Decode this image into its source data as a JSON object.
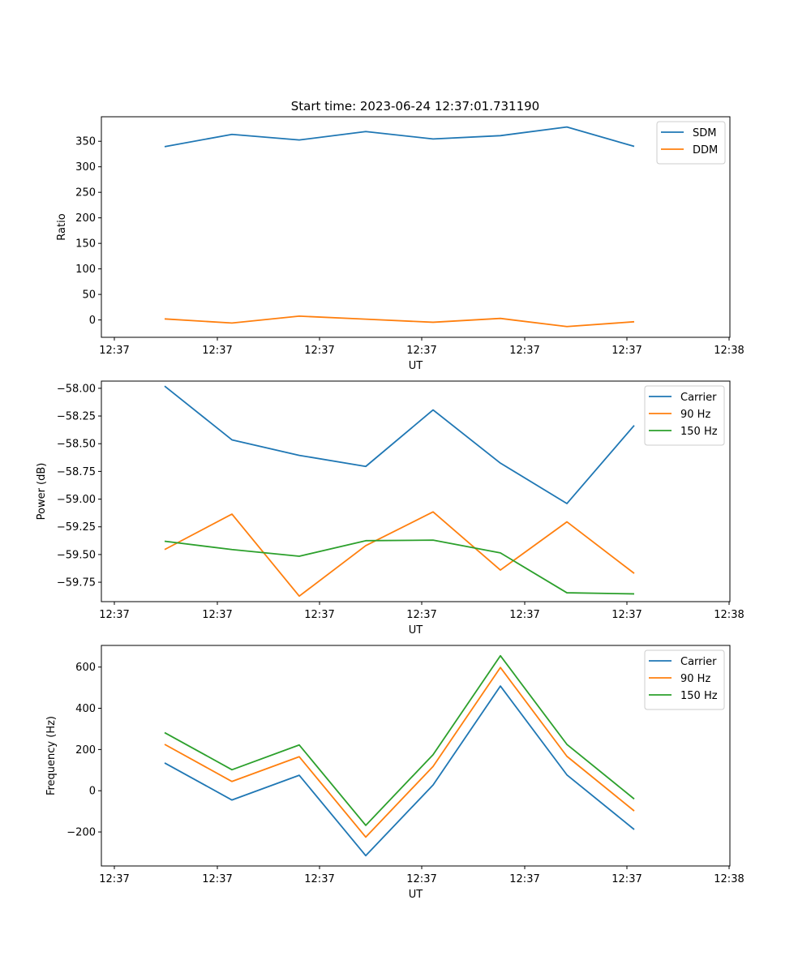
{
  "figure_title": "Start time: 2023-06-24 12:37:01.731190",
  "colors": {
    "blue": "#1f77b4",
    "orange": "#ff7f0e",
    "green": "#2ca02c"
  },
  "chart_data": [
    {
      "type": "line",
      "title": "Start time: 2023-06-24 12:37:01.731190",
      "xlabel": "UT",
      "ylabel": "Ratio",
      "xticks": [
        "12:37",
        "12:37",
        "12:37",
        "12:37",
        "12:37",
        "12:37",
        "12:38"
      ],
      "yticks": [
        0,
        50,
        100,
        150,
        200,
        250,
        300,
        350
      ],
      "ylim": [
        -34,
        398
      ],
      "legend_position": "upper right",
      "series": [
        {
          "name": "SDM",
          "color": "#1f77b4",
          "values": [
            339.5,
            363.5,
            352.5,
            369,
            354.5,
            361,
            378,
            340
          ]
        },
        {
          "name": "DDM",
          "color": "#ff7f0e",
          "values": [
            2,
            -6,
            7.5,
            1.5,
            -4.5,
            3,
            -13,
            -3.5
          ]
        }
      ]
    },
    {
      "type": "line",
      "xlabel": "UT",
      "ylabel": "Power (dB)",
      "xticks": [
        "12:37",
        "12:37",
        "12:37",
        "12:37",
        "12:37",
        "12:37",
        "12:38"
      ],
      "yticks": [
        "-58.00",
        "-58.25",
        "-58.50",
        "-58.75",
        "-59.00",
        "-59.25",
        "-59.50",
        "-59.75"
      ],
      "ylim": [
        -59.925,
        -57.935
      ],
      "legend_position": "upper right",
      "series": [
        {
          "name": "Carrier",
          "color": "#1f77b4",
          "values": [
            -57.98,
            -58.465,
            -58.605,
            -58.705,
            -58.195,
            -58.675,
            -59.04,
            -58.335
          ]
        },
        {
          "name": "90 Hz",
          "color": "#ff7f0e",
          "values": [
            -59.455,
            -59.135,
            -59.875,
            -59.42,
            -59.115,
            -59.64,
            -59.205,
            -59.67
          ]
        },
        {
          "name": "150 Hz",
          "color": "#2ca02c",
          "values": [
            -59.38,
            -59.455,
            -59.515,
            -59.375,
            -59.37,
            -59.485,
            -59.845,
            -59.855
          ]
        }
      ]
    },
    {
      "type": "line",
      "xlabel": "UT",
      "ylabel": "Frequency (Hz)",
      "xticks": [
        "12:37",
        "12:37",
        "12:37",
        "12:37",
        "12:37",
        "12:37",
        "12:38"
      ],
      "yticks": [
        -200,
        0,
        200,
        400,
        600
      ],
      "ylim": [
        -365,
        705
      ],
      "legend_position": "upper right",
      "series": [
        {
          "name": "Carrier",
          "color": "#1f77b4",
          "values": [
            135,
            -45,
            75,
            -315,
            28,
            508,
            77,
            -188
          ]
        },
        {
          "name": "90 Hz",
          "color": "#ff7f0e",
          "values": [
            225,
            45,
            165,
            -225,
            118,
            598,
            167,
            -98
          ]
        },
        {
          "name": "150 Hz",
          "color": "#2ca02c",
          "values": [
            282,
            102,
            222,
            -168,
            175,
            655,
            225,
            -40
          ]
        }
      ]
    }
  ]
}
